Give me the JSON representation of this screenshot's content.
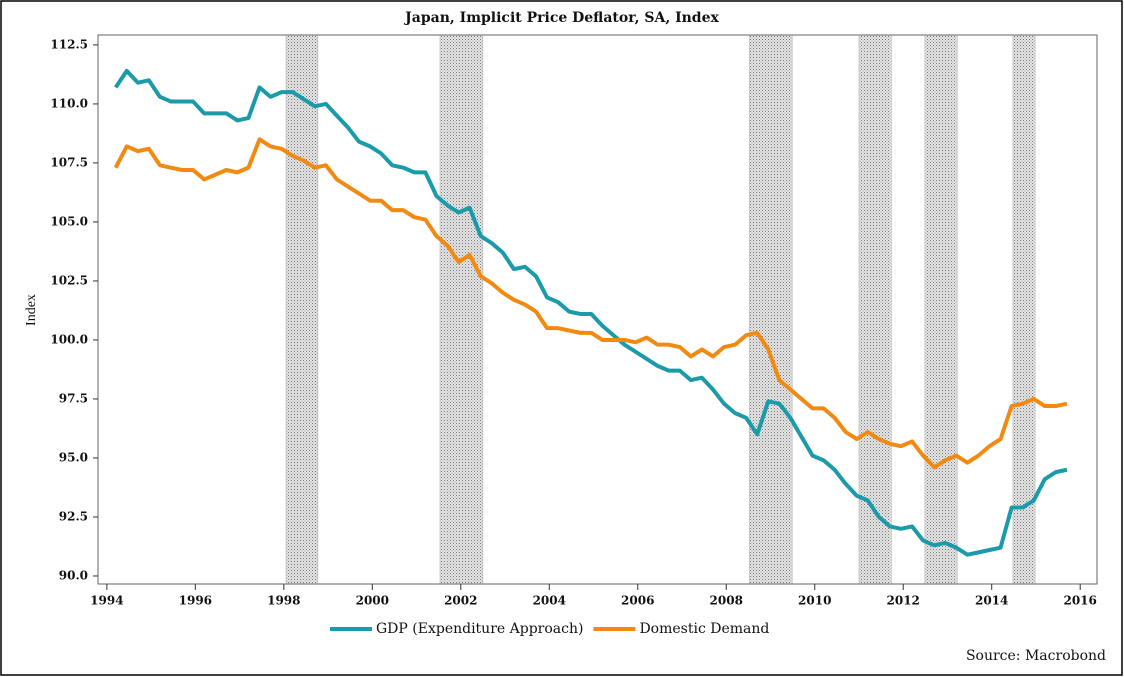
{
  "chart_data": {
    "type": "line",
    "title": "Japan, Implicit Price Deflator, SA, Index",
    "y_label": "Index",
    "source": "Source: Macrobond",
    "x": [
      1994.2,
      1994.45,
      1994.7,
      1994.95,
      1995.2,
      1995.45,
      1995.7,
      1995.95,
      1996.2,
      1996.45,
      1996.7,
      1996.95,
      1997.2,
      1997.45,
      1997.7,
      1997.95,
      1998.2,
      1998.45,
      1998.7,
      1998.95,
      1999.2,
      1999.45,
      1999.7,
      1999.95,
      2000.2,
      2000.45,
      2000.7,
      2000.95,
      2001.2,
      2001.45,
      2001.7,
      2001.95,
      2002.2,
      2002.45,
      2002.7,
      2002.95,
      2003.2,
      2003.45,
      2003.7,
      2003.95,
      2004.2,
      2004.45,
      2004.7,
      2004.95,
      2005.2,
      2005.45,
      2005.7,
      2005.95,
      2006.2,
      2006.45,
      2006.7,
      2006.95,
      2007.2,
      2007.45,
      2007.7,
      2007.95,
      2008.2,
      2008.45,
      2008.7,
      2008.95,
      2009.2,
      2009.45,
      2009.7,
      2009.95,
      2010.2,
      2010.45,
      2010.7,
      2010.95,
      2011.2,
      2011.45,
      2011.7,
      2011.95,
      2012.2,
      2012.45,
      2012.7,
      2012.95,
      2013.2,
      2013.45,
      2013.7,
      2013.95,
      2014.2,
      2014.45,
      2014.7,
      2014.95,
      2015.2,
      2015.45,
      2015.7
    ],
    "series": [
      {
        "name": "GDP (Expenditure Approach)",
        "color": "#1b9aaa",
        "values": [
          110.7,
          111.4,
          110.9,
          111.0,
          110.3,
          110.1,
          110.1,
          110.1,
          109.6,
          109.6,
          109.6,
          109.3,
          109.4,
          110.7,
          110.3,
          110.5,
          110.5,
          110.2,
          109.9,
          110.0,
          109.5,
          109.0,
          108.4,
          108.2,
          107.9,
          107.4,
          107.3,
          107.1,
          107.1,
          106.1,
          105.7,
          105.4,
          105.6,
          104.4,
          104.1,
          103.7,
          103.0,
          103.1,
          102.7,
          101.8,
          101.6,
          101.2,
          101.1,
          101.1,
          100.6,
          100.2,
          99.8,
          99.5,
          99.2,
          98.9,
          98.7,
          98.7,
          98.3,
          98.4,
          97.9,
          97.3,
          96.9,
          96.7,
          96.0,
          97.4,
          97.3,
          96.7,
          95.9,
          95.1,
          94.9,
          94.5,
          93.9,
          93.4,
          93.2,
          92.5,
          92.1,
          92.0,
          92.1,
          91.5,
          91.3,
          91.4,
          91.2,
          90.9,
          91.0,
          91.1,
          91.2,
          92.9,
          92.9,
          93.2,
          94.1,
          94.4,
          94.5
        ]
      },
      {
        "name": "Domestic Demand",
        "color": "#f28a12",
        "values": [
          107.3,
          108.2,
          108.0,
          108.1,
          107.4,
          107.3,
          107.2,
          107.2,
          106.8,
          107.0,
          107.2,
          107.1,
          107.3,
          108.5,
          108.2,
          108.1,
          107.8,
          107.6,
          107.3,
          107.4,
          106.8,
          106.5,
          106.2,
          105.9,
          105.9,
          105.5,
          105.5,
          105.2,
          105.1,
          104.4,
          104.0,
          103.3,
          103.6,
          102.7,
          102.4,
          102.0,
          101.7,
          101.5,
          101.2,
          100.5,
          100.5,
          100.4,
          100.3,
          100.3,
          100.0,
          100.0,
          100.0,
          99.9,
          100.1,
          99.8,
          99.8,
          99.7,
          99.3,
          99.6,
          99.3,
          99.7,
          99.8,
          100.2,
          100.3,
          99.6,
          98.3,
          97.9,
          97.5,
          97.1,
          97.1,
          96.7,
          96.1,
          95.8,
          96.1,
          95.8,
          95.6,
          95.5,
          95.7,
          95.1,
          94.6,
          94.9,
          95.1,
          94.8,
          95.1,
          95.5,
          95.8,
          97.2,
          97.3,
          97.5,
          97.2,
          97.2,
          97.3
        ]
      }
    ],
    "shaded_periods": [
      [
        1998.05,
        1998.77
      ],
      [
        2001.53,
        2002.5
      ],
      [
        2008.52,
        2009.49
      ],
      [
        2011.0,
        2011.73
      ],
      [
        2012.49,
        2013.22
      ],
      [
        2014.48,
        2014.98
      ]
    ],
    "xlim": [
      1993.8,
      2016.38
    ],
    "xticks": [
      1994,
      1996,
      1998,
      2000,
      2002,
      2004,
      2006,
      2008,
      2010,
      2012,
      2014,
      2016
    ],
    "ylim": [
      89.66,
      112.92
    ],
    "yticks": [
      {
        "value": 90,
        "label": "90.0"
      },
      92.5,
      {
        "value": 95,
        "label": "95.0"
      },
      97.5,
      {
        "value": 100,
        "label": "100.0"
      },
      102.5,
      {
        "value": 105,
        "label": "105.0"
      },
      107.5,
      {
        "value": 110,
        "label": "110.0"
      },
      112.5
    ],
    "legend": "bottom"
  }
}
